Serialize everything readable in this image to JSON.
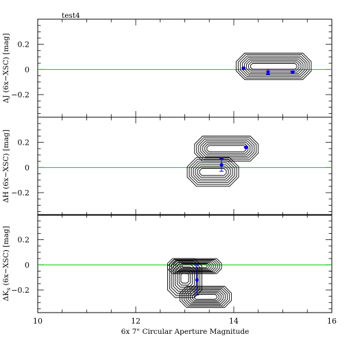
{
  "chart_data": {
    "type": "scatter",
    "title": "test4",
    "xlabel": "6x 7\" Circular Aperture Magnitude",
    "xlim": [
      10,
      16
    ],
    "x_ticks": [
      10,
      12,
      14,
      16
    ],
    "zero_line_color": "#00cc00",
    "marker_color": "#0000dd",
    "contour_color": "#000000",
    "panels": [
      {
        "name": "J",
        "ylabel": "ΔJ (6x−XSC) [mag]",
        "ylim": [
          -0.38,
          0.4
        ],
        "y_ticks": [
          0.2,
          0,
          -0.2
        ],
        "y_tick_labels": [
          "0.2",
          "0",
          "−0.2"
        ],
        "points": [
          {
            "x": 14.2,
            "y": 0.01,
            "err": 0.005
          },
          {
            "x": 14.7,
            "y": -0.02,
            "err": 0.02
          },
          {
            "x": 15.2,
            "y": -0.02,
            "err": 0.005
          }
        ],
        "contour_groups": [
          {
            "x": [
              14.05,
              15.58
            ],
            "y": [
              -0.08,
              0.13
            ],
            "levels": 8
          }
        ]
      },
      {
        "name": "H",
        "ylabel": "ΔH (6x−XSC) [mag]",
        "ylim": [
          -0.38,
          0.4
        ],
        "y_ticks": [
          0.2,
          0,
          -0.2
        ],
        "y_tick_labels": [
          "0.2",
          "0",
          "−0.2"
        ],
        "points": [
          {
            "x": 13.75,
            "y": 0.02,
            "err": 0.05
          },
          {
            "x": 14.25,
            "y": 0.16,
            "err": 0.005
          }
        ],
        "contour_groups": [
          {
            "x": [
              13.2,
              14.5
            ],
            "y": [
              0.05,
              0.25
            ],
            "levels": 7
          },
          {
            "x": [
              13.05,
              14.1
            ],
            "y": [
              -0.15,
              0.08
            ],
            "levels": 7
          }
        ]
      },
      {
        "name": "Ks",
        "ylabel": "ΔK",
        "ylabel_sub": "s",
        "ylabel_rest": " (6x−XSC) [mag]",
        "ylim": [
          -0.38,
          0.4
        ],
        "y_ticks": [
          0.2,
          0,
          -0.2
        ],
        "y_tick_labels": [
          "0.2",
          "0",
          "−0.2"
        ],
        "points": [
          {
            "x": 13.25,
            "y": -0.12,
            "err": 0.12
          }
        ],
        "contour_groups": [
          {
            "x": [
              12.65,
              13.75
            ],
            "y": [
              -0.07,
              0.05
            ],
            "levels": 8
          },
          {
            "x": [
              12.65,
              13.35
            ],
            "y": [
              -0.26,
              0.05
            ],
            "levels": 8
          },
          {
            "x": [
              12.9,
              13.95
            ],
            "y": [
              -0.34,
              -0.17
            ],
            "levels": 8
          }
        ]
      }
    ]
  }
}
